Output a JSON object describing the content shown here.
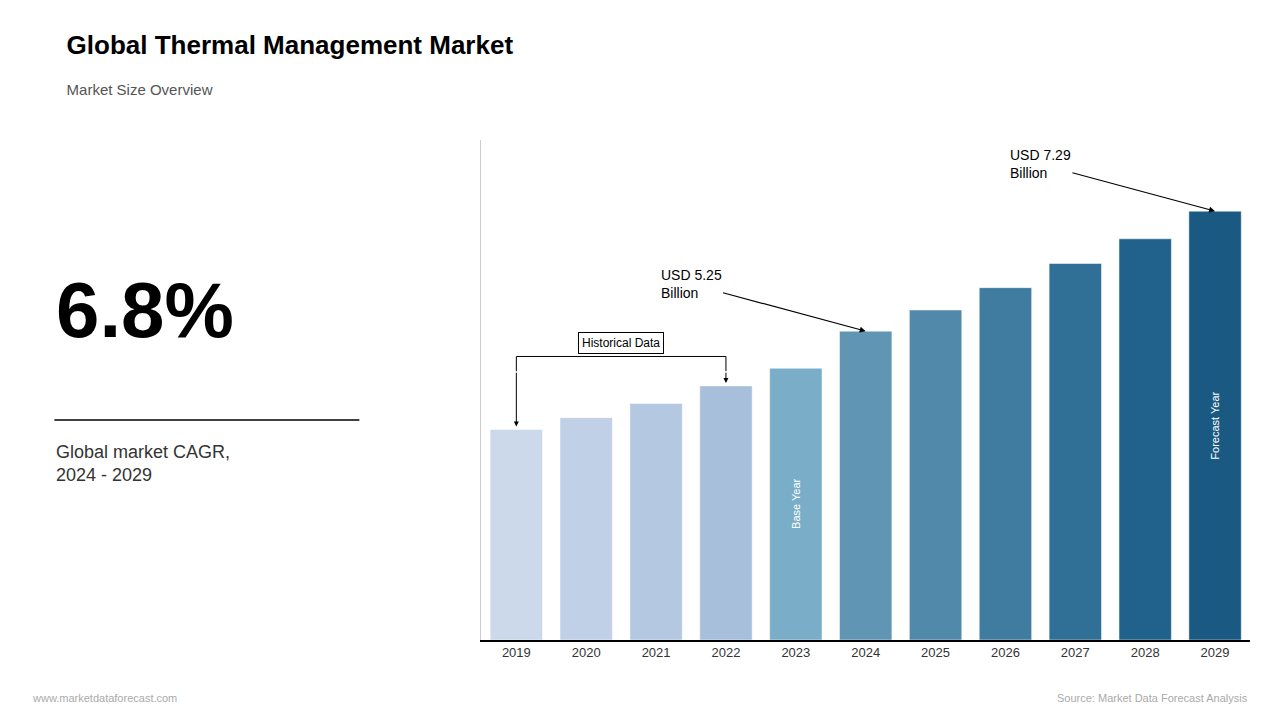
{
  "chart_data": {
    "type": "bar",
    "title": "Global Thermal Management Market",
    "subtitle": "Market Size Overview",
    "categories": [
      "2019",
      "2020",
      "2021",
      "2022",
      "2023",
      "2024",
      "2025",
      "2026",
      "2027",
      "2028",
      "2029"
    ],
    "values": [
      3.58,
      3.78,
      4.02,
      4.32,
      4.62,
      5.25,
      5.61,
      5.99,
      6.4,
      6.82,
      7.29
    ],
    "colors": [
      "#ccd9ea",
      "#c0d0e6",
      "#b4c8e1",
      "#a8bfdb",
      "#7aaec8",
      "#6096b4",
      "#5089aa",
      "#407ca0",
      "#306f96",
      "#20628c",
      "#1a5a82"
    ],
    "ylim": [
      0,
      8.5
    ],
    "yticks": [],
    "tick_labels": "x",
    "grid": false,
    "cagr": "6.8%",
    "cagr_label": "Global market CAGR,\n2024 - 2029",
    "bracket": {
      "text": "Historical Data",
      "from": "2019",
      "to": "2022"
    },
    "inside_labels": [
      {
        "text": "Base Year",
        "x": "2023"
      },
      {
        "text": "Forecast Year",
        "x": "2029"
      }
    ],
    "callouts": [
      {
        "text": "USD 5.25\nBillion",
        "x": "2024"
      },
      {
        "text": "USD 7.29\nBillion",
        "x": "2029"
      }
    ],
    "footer_left": "www.marketdataforecast.com",
    "footer_right": "Source: Market Data Forecast Analysis"
  }
}
